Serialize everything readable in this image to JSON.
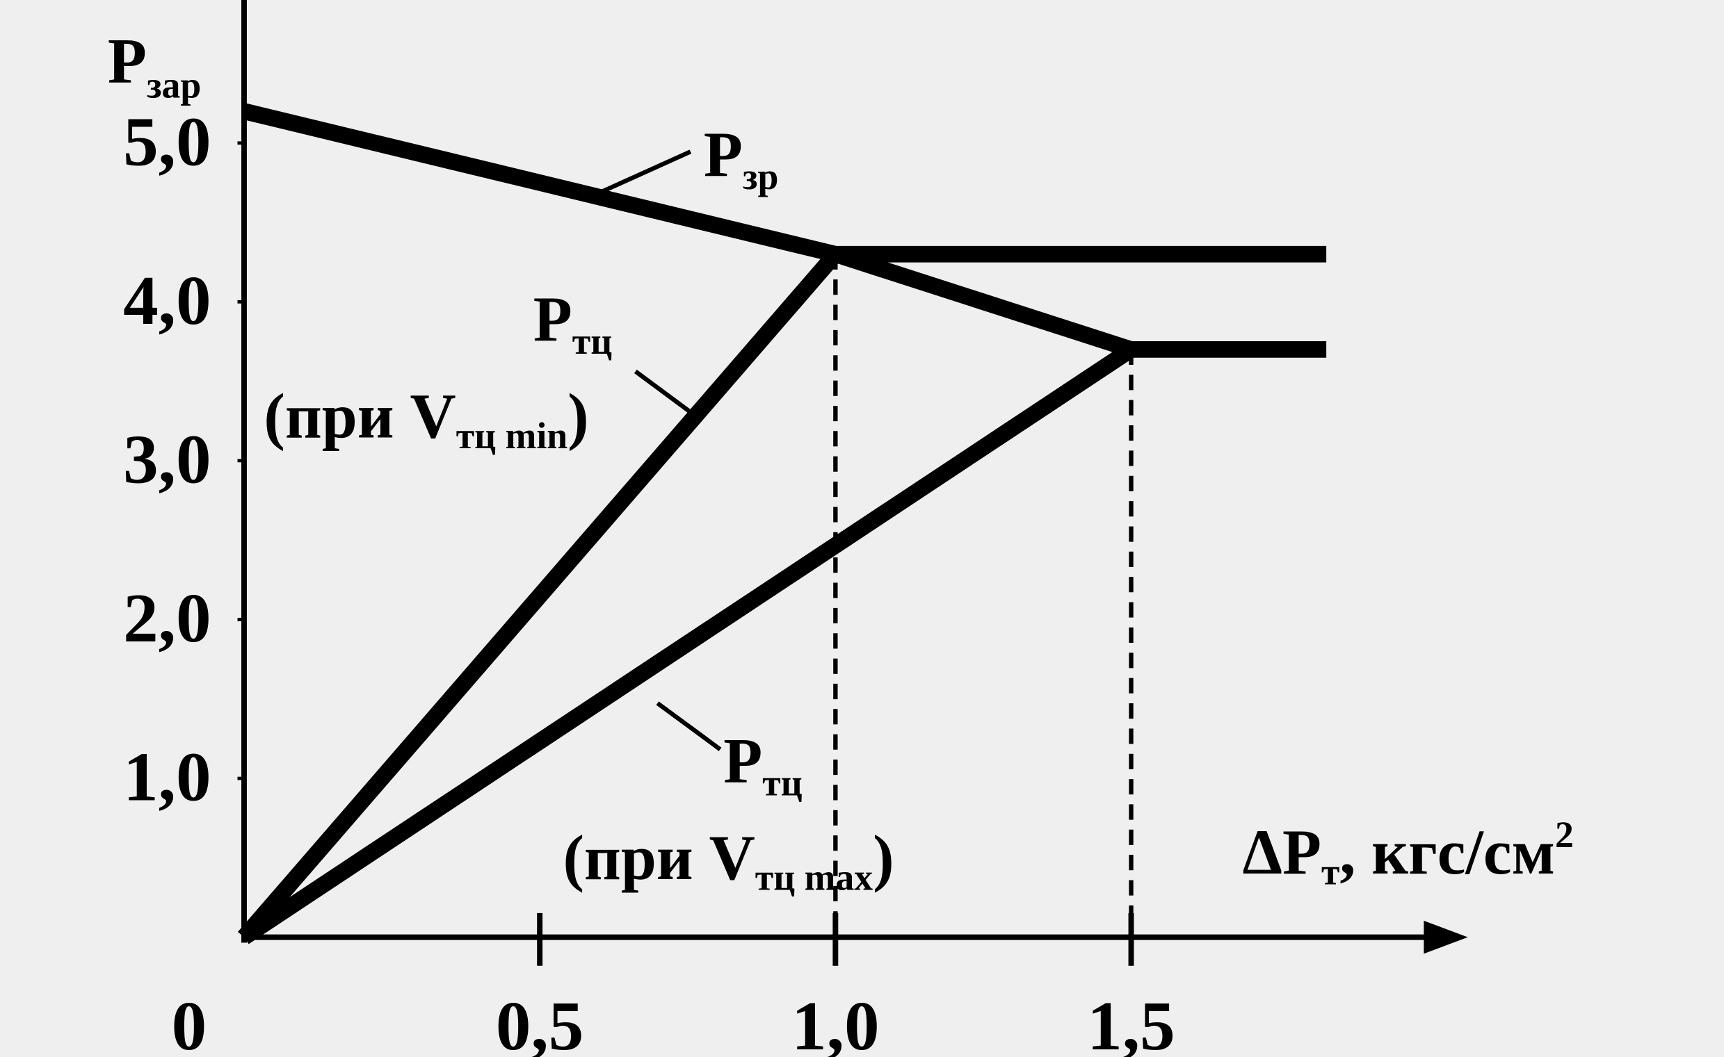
{
  "chart_data": {
    "type": "line",
    "y_label": {
      "main": "P",
      "sub": "зар"
    },
    "x_label": {
      "main": "ΔP",
      "sub": "т",
      "rest": ", кгс/см",
      "sup": "2"
    },
    "xlim": [
      0,
      2.06
    ],
    "ylim": [
      0,
      5.9
    ],
    "xticks": [
      0,
      {
        "value": 0.5,
        "label": "0,5"
      },
      {
        "value": 1,
        "label": "1,0"
      },
      {
        "value": 1.5,
        "label": "1,5"
      }
    ],
    "yticks": [
      {
        "value": 1,
        "label": "1,0"
      },
      {
        "value": 2,
        "label": "2,0"
      },
      {
        "value": 3,
        "label": "3,0"
      },
      {
        "value": 4,
        "label": "4,0"
      },
      {
        "value": 5,
        "label": "5,0"
      }
    ],
    "series": [
      {
        "color": "#000000",
        "x": [
          0,
          1.0,
          1.5,
          1.83
        ],
        "values": [
          5.2,
          4.3,
          3.7,
          3.7
        ]
      },
      {
        "color": "#000000",
        "x": [
          0,
          1.0,
          1.83
        ],
        "values": [
          0,
          4.3,
          4.3
        ]
      },
      {
        "color": "#000000",
        "x": [
          0,
          1.5
        ],
        "values": [
          0,
          3.7
        ]
      }
    ],
    "annotations": [
      {
        "main": "P",
        "sub": "зр"
      },
      {
        "main": "P",
        "sub": "тц",
        "open": "(при V",
        "sub2": "тц min",
        "close": ")"
      },
      {
        "main": "P",
        "sub": "тц",
        "open": "(при V",
        "sub2": "тц max",
        "close": ")"
      }
    ]
  }
}
